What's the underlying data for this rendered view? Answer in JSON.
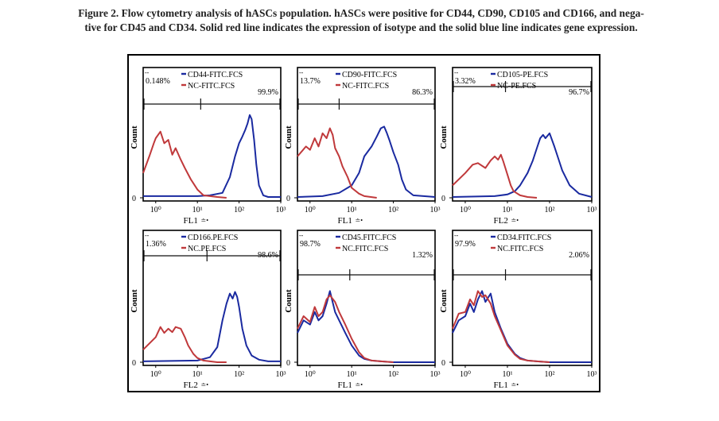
{
  "caption": {
    "line1": "Figure 2. Flow cytometry analysis of hASCs population. hASCs were positive for CD44, CD90, CD105 and CD166, and nega-",
    "line2": "tive for CD45 and CD34. Solid red line indicates the expression of isotype and the solid blue line indicates gene expression."
  },
  "colors": {
    "isotype": "#c0393b",
    "gene": "#1a2aa0"
  },
  "chart_data": [
    {
      "type": "line",
      "panel": "CD44",
      "ylabel": "Count",
      "xlabel": "FL1",
      "xscale": "log",
      "xlim": [
        0.5,
        1000
      ],
      "xticks": [
        "10⁰",
        "10¹",
        "10²",
        "10³"
      ],
      "series": [
        {
          "name": "CD44-FITC.FCS",
          "color": "#1a2aa0",
          "x": [
            0.5,
            10,
            20,
            40,
            60,
            80,
            100,
            120,
            140,
            160,
            180,
            200,
            230,
            260,
            300,
            380,
            500,
            1000
          ],
          "y": [
            0.02,
            0.02,
            0.03,
            0.06,
            0.25,
            0.5,
            0.66,
            0.74,
            0.82,
            0.9,
            1.0,
            0.95,
            0.7,
            0.4,
            0.15,
            0.03,
            0.01,
            0.01
          ]
        },
        {
          "name": "NC-FITC.FCS",
          "color": "#c0393b",
          "x": [
            0.5,
            0.7,
            0.9,
            1.0,
            1.3,
            1.6,
            2.0,
            2.5,
            3.0,
            4.0,
            5.0,
            7.0,
            10,
            14,
            20,
            30,
            50
          ],
          "y": [
            0.3,
            0.5,
            0.66,
            0.72,
            0.8,
            0.66,
            0.7,
            0.52,
            0.6,
            0.46,
            0.36,
            0.22,
            0.1,
            0.03,
            0.02,
            0.01,
            0.0
          ]
        }
      ],
      "gates": [
        {
          "label": "0.148%",
          "x": [
            0.5,
            12
          ]
        },
        {
          "label": "99.9%",
          "x": [
            12,
            1000
          ]
        }
      ]
    },
    {
      "type": "line",
      "panel": "CD90",
      "ylabel": "Count",
      "xlabel": "FL1",
      "xscale": "log",
      "xlim": [
        0.5,
        1000
      ],
      "xticks": [
        "10⁰",
        "10¹",
        "10²",
        "10³"
      ],
      "series": [
        {
          "name": "CD90-FITC.FCS",
          "color": "#1a2aa0",
          "x": [
            0.5,
            2,
            5,
            10,
            15,
            20,
            30,
            40,
            50,
            60,
            70,
            80,
            100,
            130,
            160,
            200,
            300,
            1000
          ],
          "y": [
            0.01,
            0.02,
            0.06,
            0.15,
            0.3,
            0.5,
            0.62,
            0.74,
            0.84,
            0.86,
            0.78,
            0.7,
            0.55,
            0.4,
            0.22,
            0.1,
            0.03,
            0.01
          ]
        },
        {
          "name": "NC-FITC.FCS",
          "color": "#c0393b",
          "x": [
            0.5,
            0.8,
            1.0,
            1.3,
            1.6,
            2.0,
            2.5,
            3.0,
            3.5,
            4.0,
            5.0,
            6.0,
            8.0,
            10,
            15,
            20,
            40
          ],
          "y": [
            0.5,
            0.62,
            0.58,
            0.72,
            0.62,
            0.78,
            0.72,
            0.84,
            0.76,
            0.6,
            0.5,
            0.38,
            0.25,
            0.12,
            0.05,
            0.02,
            0.0
          ]
        }
      ],
      "gates": [
        {
          "label": "13.7%",
          "x": [
            0.5,
            5
          ]
        },
        {
          "label": "86.3%",
          "x": [
            5,
            1000
          ]
        }
      ]
    },
    {
      "type": "line",
      "panel": "CD105",
      "ylabel": "Count",
      "xlabel": "FL2",
      "xscale": "log",
      "xlim": [
        0.5,
        1000
      ],
      "xticks": [
        "10⁰",
        "10¹",
        "10²",
        "10³"
      ],
      "series": [
        {
          "name": "CD105-PE.FCS",
          "color": "#1a2aa0",
          "x": [
            0.5,
            5,
            10,
            15,
            20,
            30,
            40,
            50,
            60,
            70,
            80,
            100,
            130,
            160,
            200,
            300,
            500,
            1000
          ],
          "y": [
            0.01,
            0.02,
            0.04,
            0.08,
            0.15,
            0.3,
            0.45,
            0.6,
            0.72,
            0.76,
            0.72,
            0.78,
            0.62,
            0.48,
            0.33,
            0.15,
            0.05,
            0.01
          ]
        },
        {
          "name": "NC-PE.FCS",
          "color": "#c0393b",
          "x": [
            0.5,
            1.0,
            1.5,
            2.0,
            3.0,
            4.0,
            5.0,
            6.0,
            7.0,
            8.0,
            10,
            12,
            14,
            20,
            30,
            50
          ],
          "y": [
            0.15,
            0.3,
            0.4,
            0.42,
            0.36,
            0.45,
            0.5,
            0.46,
            0.52,
            0.44,
            0.28,
            0.15,
            0.08,
            0.03,
            0.01,
            0.0
          ]
        }
      ],
      "gates": [
        {
          "label": "3.32%",
          "x": [
            0.5,
            9
          ]
        },
        {
          "label": "96.7%",
          "x": [
            9,
            1000
          ]
        }
      ]
    },
    {
      "type": "line",
      "panel": "CD166",
      "ylabel": "Count",
      "xlabel": "FL2",
      "xscale": "log",
      "xlim": [
        0.5,
        1000
      ],
      "xticks": [
        "10⁰",
        "10¹",
        "10²",
        "10³"
      ],
      "series": [
        {
          "name": "CD166.PE.FCS",
          "color": "#1a2aa0",
          "x": [
            0.5,
            10,
            20,
            30,
            40,
            50,
            60,
            70,
            80,
            90,
            100,
            120,
            150,
            200,
            300,
            500,
            1000
          ],
          "y": [
            0.01,
            0.02,
            0.06,
            0.18,
            0.5,
            0.7,
            0.82,
            0.76,
            0.84,
            0.78,
            0.66,
            0.4,
            0.2,
            0.08,
            0.03,
            0.01,
            0.01
          ]
        },
        {
          "name": "NC.PE.FCS",
          "color": "#c0393b",
          "x": [
            0.5,
            1.0,
            1.3,
            1.6,
            2.0,
            2.5,
            3.0,
            4.0,
            5.0,
            6.0,
            8.0,
            10,
            14,
            20,
            30,
            50
          ],
          "y": [
            0.15,
            0.3,
            0.42,
            0.35,
            0.4,
            0.36,
            0.42,
            0.4,
            0.3,
            0.2,
            0.1,
            0.05,
            0.02,
            0.01,
            0.0,
            0.0
          ]
        }
      ],
      "gates": [
        {
          "label": "1.36%",
          "x": [
            0.5,
            17
          ]
        },
        {
          "label": "98.6%",
          "x": [
            17,
            1000
          ]
        }
      ]
    },
    {
      "type": "line",
      "panel": "CD45",
      "ylabel": "Count",
      "xlabel": "FL1",
      "xscale": "log",
      "xlim": [
        0.5,
        1000
      ],
      "xticks": [
        "10⁰",
        "10¹",
        "10²",
        "10³"
      ],
      "series": [
        {
          "name": "CD45.FITC.FCS",
          "color": "#1a2aa0",
          "x": [
            0.5,
            0.7,
            1.0,
            1.3,
            1.6,
            2.0,
            2.5,
            3.0,
            4.0,
            5.0,
            7.0,
            10,
            15,
            20,
            30,
            50,
            100,
            1000
          ],
          "y": [
            0.35,
            0.5,
            0.45,
            0.6,
            0.5,
            0.55,
            0.7,
            0.85,
            0.6,
            0.5,
            0.35,
            0.2,
            0.08,
            0.04,
            0.02,
            0.01,
            0.0,
            0.0
          ]
        },
        {
          "name": "NC.FITC.FCS",
          "color": "#c0393b",
          "x": [
            0.5,
            0.7,
            1.0,
            1.3,
            1.6,
            2.0,
            2.5,
            3.0,
            4.0,
            5.0,
            7.0,
            10,
            15,
            20,
            30,
            50,
            100
          ],
          "y": [
            0.4,
            0.55,
            0.48,
            0.66,
            0.55,
            0.6,
            0.75,
            0.8,
            0.72,
            0.6,
            0.45,
            0.28,
            0.12,
            0.05,
            0.02,
            0.01,
            0.0
          ]
        }
      ],
      "gates": [
        {
          "label": "98.7%",
          "x": [
            0.5,
            9
          ]
        },
        {
          "label": "1.32%",
          "x": [
            9,
            1000
          ]
        }
      ]
    },
    {
      "type": "line",
      "panel": "CD34",
      "ylabel": "Count",
      "xlabel": "FL1",
      "xscale": "log",
      "xlim": [
        0.5,
        1000
      ],
      "xticks": [
        "10⁰",
        "10¹",
        "10²",
        "10³"
      ],
      "series": [
        {
          "name": "CD34.FITC.FCS",
          "color": "#1a2aa0",
          "x": [
            0.5,
            0.7,
            1.0,
            1.3,
            1.6,
            2.0,
            2.5,
            3.0,
            4.0,
            5.0,
            7.0,
            10,
            15,
            20,
            30,
            50,
            100,
            1000
          ],
          "y": [
            0.35,
            0.5,
            0.55,
            0.7,
            0.6,
            0.75,
            0.85,
            0.72,
            0.82,
            0.6,
            0.4,
            0.22,
            0.1,
            0.05,
            0.02,
            0.01,
            0.0,
            0.0
          ]
        },
        {
          "name": "NC.FITC.FCS",
          "color": "#c0393b",
          "x": [
            0.5,
            0.7,
            1.0,
            1.3,
            1.6,
            2.0,
            2.5,
            3.0,
            4.0,
            5.0,
            7.0,
            10,
            15,
            20,
            30,
            50,
            100
          ],
          "y": [
            0.4,
            0.58,
            0.6,
            0.75,
            0.68,
            0.85,
            0.78,
            0.8,
            0.7,
            0.55,
            0.38,
            0.2,
            0.09,
            0.04,
            0.02,
            0.01,
            0.0
          ]
        }
      ],
      "gates": [
        {
          "label": "97.9%",
          "x": [
            0.5,
            9
          ]
        },
        {
          "label": "2.06%",
          "x": [
            9,
            1000
          ]
        }
      ]
    }
  ]
}
